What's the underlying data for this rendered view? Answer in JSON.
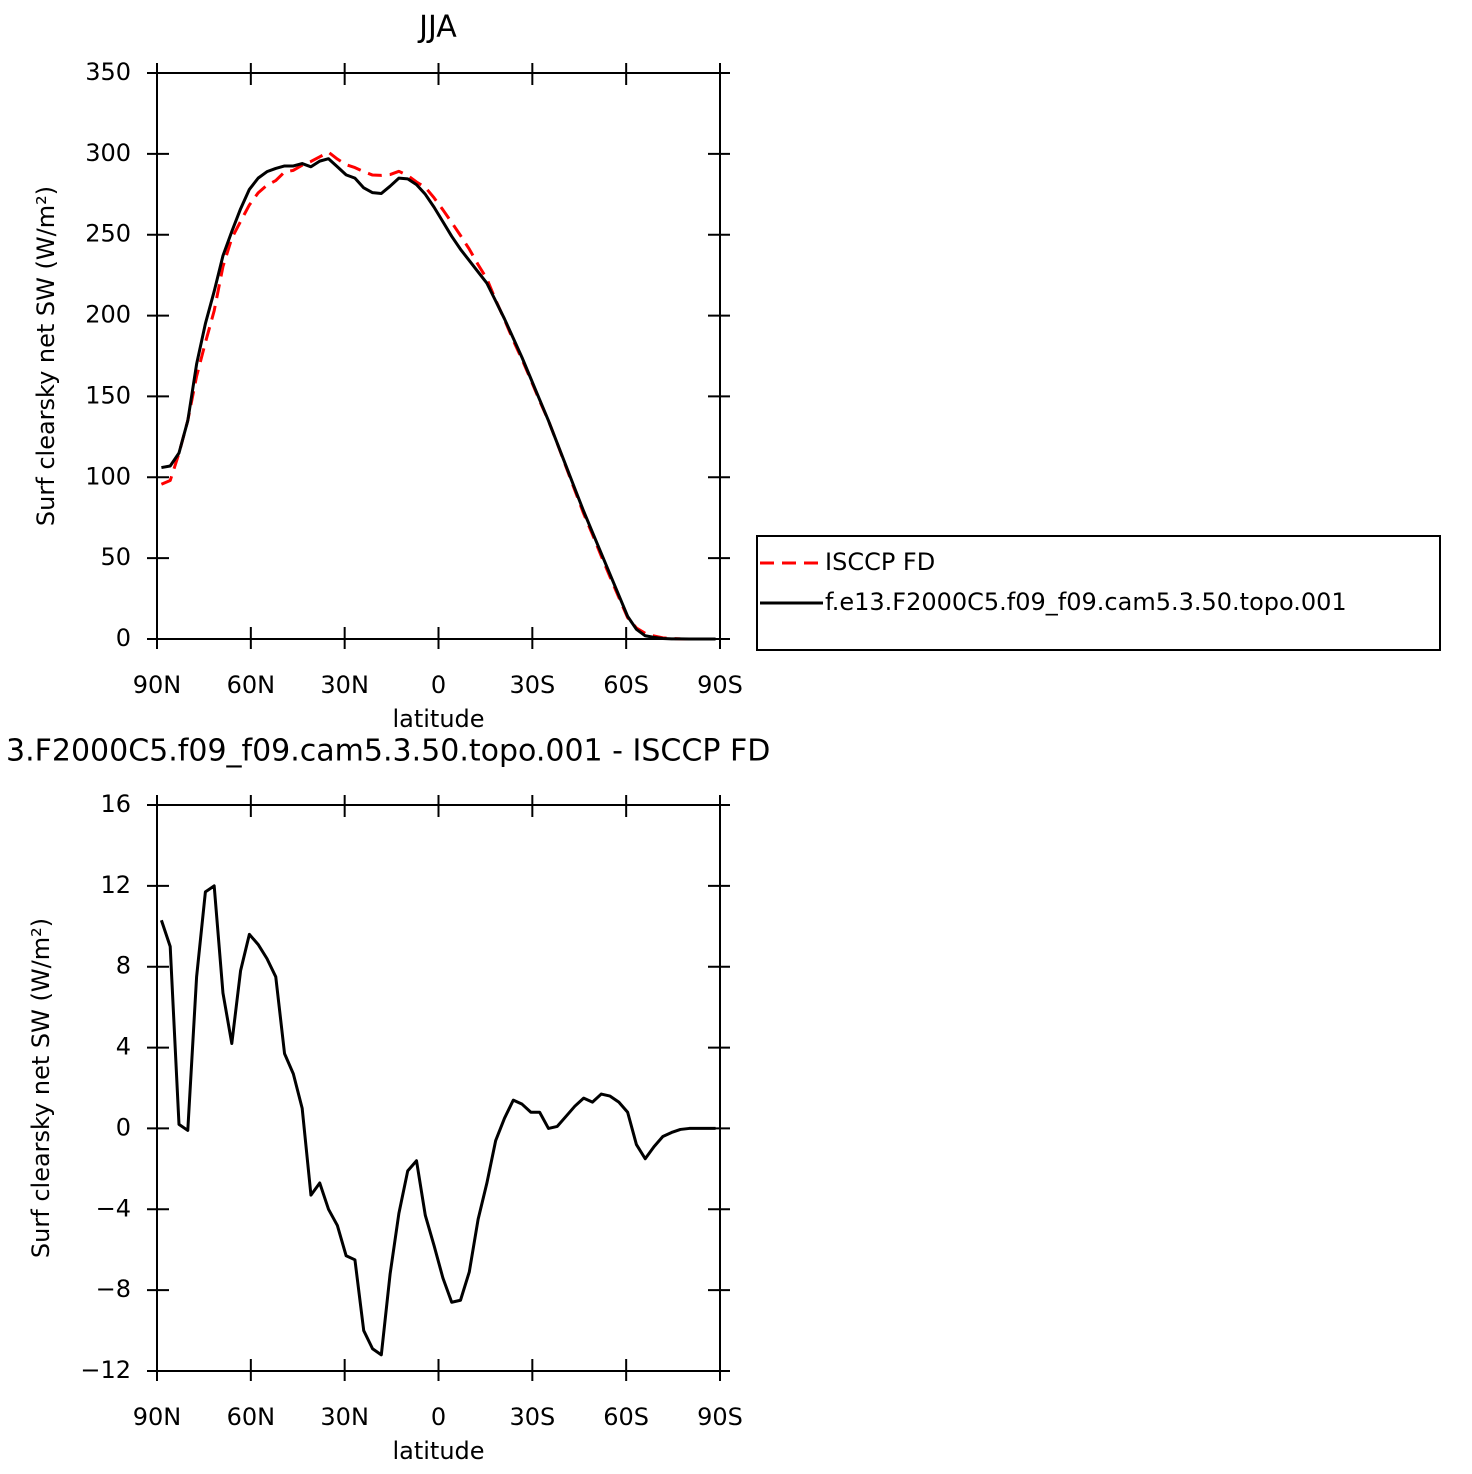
{
  "chart_data": [
    {
      "type": "line",
      "title": "JJA",
      "ylabel": "Surf clearsky net SW (W/m²)",
      "xlabel": "latitude",
      "x": [
        88.59,
        85.78,
        82.97,
        80.16,
        77.34,
        74.53,
        71.72,
        68.91,
        66.09,
        63.28,
        60.47,
        57.66,
        54.84,
        52.03,
        49.22,
        46.41,
        43.59,
        40.78,
        37.97,
        35.16,
        32.34,
        29.53,
        26.72,
        23.91,
        21.09,
        18.28,
        15.47,
        12.66,
        9.84,
        7.03,
        4.22,
        1.41,
        -1.41,
        -4.22,
        -7.03,
        -9.84,
        -12.66,
        -15.47,
        -18.28,
        -21.09,
        -23.91,
        -26.72,
        -29.53,
        -32.34,
        -35.16,
        -37.97,
        -40.78,
        -43.59,
        -46.41,
        -49.22,
        -52.03,
        -54.84,
        -57.66,
        -60.47,
        -63.28,
        -66.09,
        -68.91,
        -71.72,
        -74.53,
        -77.34,
        -80.16,
        -82.97,
        -85.78,
        -88.59
      ],
      "series": [
        {
          "name": "ISCCP FD",
          "color": "#ff0000",
          "linestyle": "dashed",
          "values": [
            95.7,
            98,
            114.8,
            135.1,
            162.5,
            183.3,
            203,
            230.3,
            247.8,
            258.2,
            268.4,
            275.9,
            280.6,
            283.5,
            288.8,
            289.8,
            293,
            295.3,
            298.2,
            301,
            296.8,
            293.3,
            291.5,
            289,
            286.9,
            286.7,
            287.2,
            289.2,
            286.6,
            282.6,
            279.3,
            272.8,
            265.4,
            257.6,
            249.5,
            241.1,
            231.5,
            222.7,
            209.6,
            197.5,
            184.6,
            172.8,
            160.2,
            147.2,
            135,
            120.9,
            106.4,
            91.9,
            77.5,
            64.7,
            51.3,
            38.4,
            25.7,
            13.2,
            6.8,
            3.5,
            1.9,
            0.7,
            0.3,
            0.05,
            0,
            0,
            0,
            0
          ]
        },
        {
          "name": "f.e13.F2000C5.f09_f09.cam5.3.50.topo.001",
          "color": "#000000",
          "linestyle": "solid",
          "values": [
            106,
            107,
            115,
            135,
            170,
            195,
            215,
            237,
            252,
            266,
            278,
            285,
            289,
            291,
            292.5,
            292.5,
            294,
            292,
            295.5,
            297,
            292,
            287,
            285,
            279,
            276,
            275.5,
            280,
            285,
            284.5,
            281,
            275,
            267,
            258,
            249,
            241,
            234,
            227,
            220,
            209,
            198,
            186,
            174,
            161,
            148,
            135,
            121,
            107,
            93,
            79,
            66,
            53,
            40,
            27,
            14,
            6,
            2,
            1,
            0.3,
            0.1,
            0.05,
            0,
            0,
            0,
            0
          ]
        }
      ],
      "xlim": [
        90,
        -90
      ],
      "xticks": [
        {
          "value": 90,
          "label": "90N"
        },
        {
          "value": 60,
          "label": "60N"
        },
        {
          "value": 30,
          "label": "30N"
        },
        0,
        {
          "value": -30,
          "label": "30S"
        },
        {
          "value": -60,
          "label": "60S"
        },
        {
          "value": -90,
          "label": "90S"
        }
      ],
      "ylim": [
        0,
        350
      ],
      "yticks": [
        0,
        50,
        100,
        150,
        200,
        250,
        300,
        350
      ],
      "legend": "right"
    },
    {
      "type": "line",
      "title": "3.F2000C5.f09_f09.cam5.3.50.topo.001 - ISCCP FD",
      "ylabel": "Surf clearsky net SW (W/m²)",
      "xlabel": "latitude",
      "x": [
        88.59,
        85.78,
        82.97,
        80.16,
        77.34,
        74.53,
        71.72,
        68.91,
        66.09,
        63.28,
        60.47,
        57.66,
        54.84,
        52.03,
        49.22,
        46.41,
        43.59,
        40.78,
        37.97,
        35.16,
        32.34,
        29.53,
        26.72,
        23.91,
        21.09,
        18.28,
        15.47,
        12.66,
        9.84,
        7.03,
        4.22,
        1.41,
        -1.41,
        -4.22,
        -7.03,
        -9.84,
        -12.66,
        -15.47,
        -18.28,
        -21.09,
        -23.91,
        -26.72,
        -29.53,
        -32.34,
        -35.16,
        -37.97,
        -40.78,
        -43.59,
        -46.41,
        -49.22,
        -52.03,
        -54.84,
        -57.66,
        -60.47,
        -63.28,
        -66.09,
        -68.91,
        -71.72,
        -74.53,
        -77.34,
        -80.16,
        -82.97,
        -85.78,
        -88.59
      ],
      "series": [
        {
          "color": "#000000",
          "linestyle": "solid",
          "values": [
            10.3,
            9.0,
            0.2,
            -0.1,
            7.5,
            11.7,
            12.0,
            6.7,
            4.2,
            7.8,
            9.6,
            9.1,
            8.4,
            7.5,
            3.7,
            2.7,
            1.0,
            -3.3,
            -2.7,
            -4.0,
            -4.8,
            -6.3,
            -6.5,
            -10.0,
            -10.9,
            -11.2,
            -7.2,
            -4.2,
            -2.1,
            -1.6,
            -4.3,
            -5.8,
            -7.4,
            -8.6,
            -8.5,
            -7.1,
            -4.5,
            -2.7,
            -0.6,
            0.5,
            1.4,
            1.2,
            0.8,
            0.8,
            0.0,
            0.1,
            0.6,
            1.1,
            1.5,
            1.3,
            1.7,
            1.6,
            1.3,
            0.8,
            -0.8,
            -1.5,
            -0.9,
            -0.4,
            -0.2,
            -0.05,
            0,
            0,
            0,
            0
          ]
        }
      ],
      "xlim": [
        90,
        -90
      ],
      "xticks": [
        {
          "value": 90,
          "label": "90N"
        },
        {
          "value": 60,
          "label": "60N"
        },
        {
          "value": 30,
          "label": "30N"
        },
        0,
        {
          "value": -30,
          "label": "30S"
        },
        {
          "value": -60,
          "label": "60S"
        },
        {
          "value": -90,
          "label": "90S"
        }
      ],
      "ylim": [
        -12,
        16
      ],
      "yticks": [
        {
          "value": -12,
          "label": "−12"
        },
        {
          "value": -8,
          "label": "−8"
        },
        {
          "value": -4,
          "label": "−4"
        },
        0,
        4,
        8,
        12,
        16
      ]
    }
  ]
}
